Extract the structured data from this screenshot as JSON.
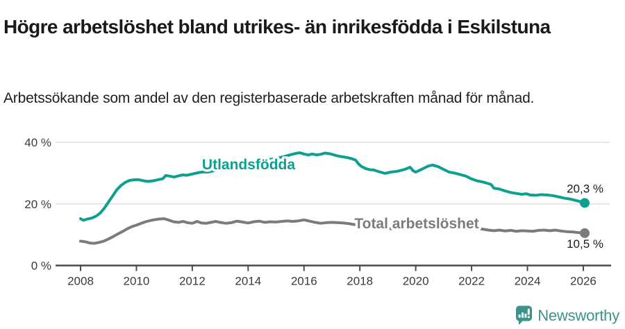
{
  "header": {
    "title": "Högre arbetslöshet bland utrikes- än inrikesfödda i Eskilstuna",
    "subtitle": "Arbetssökande som andel av den registerbaserade arbetskraften månad för månad."
  },
  "footer": {
    "brand": "Newsworthy",
    "brand_color": "#3a948b",
    "logo_icon": "newsworthy-speech-bubble-bar-chart-icon"
  },
  "chart_data": {
    "type": "line",
    "title": "Högre arbetslöshet bland utrikes- än inrikesfödda i Eskilstuna",
    "subtitle": "Arbetssökande som andel av den registerbaserade arbetskraften månad för månad.",
    "xlabel": "",
    "ylabel": "",
    "grid": true,
    "legend_position": "inline-on-line",
    "x_axis": {
      "ticks": [
        2008,
        2010,
        2012,
        2014,
        2016,
        2018,
        2020,
        2022,
        2024,
        2026
      ],
      "range": [
        2007.3,
        2026.95
      ]
    },
    "y_axis": {
      "ticks": [
        {
          "value": 0,
          "label": "0 %"
        },
        {
          "value": 20,
          "label": "20 %"
        },
        {
          "value": 40,
          "label": "40 %"
        }
      ],
      "range": [
        0,
        40
      ]
    },
    "series": [
      {
        "name": "Utlandsfödda",
        "color": "#0d9f90",
        "end_label": "20,3 %",
        "end_value": 20.3,
        "points": [
          [
            2008.0,
            15.2
          ],
          [
            2008.1,
            14.7
          ],
          [
            2008.25,
            15.1
          ],
          [
            2008.4,
            15.4
          ],
          [
            2008.55,
            16.0
          ],
          [
            2008.7,
            17.0
          ],
          [
            2008.85,
            18.6
          ],
          [
            2009.0,
            20.6
          ],
          [
            2009.15,
            22.6
          ],
          [
            2009.3,
            24.6
          ],
          [
            2009.45,
            26.0
          ],
          [
            2009.6,
            27.0
          ],
          [
            2009.75,
            27.6
          ],
          [
            2009.9,
            27.8
          ],
          [
            2010.05,
            27.9
          ],
          [
            2010.2,
            27.6
          ],
          [
            2010.4,
            27.3
          ],
          [
            2010.6,
            27.5
          ],
          [
            2010.8,
            27.9
          ],
          [
            2010.95,
            28.2
          ],
          [
            2011.05,
            29.2
          ],
          [
            2011.2,
            29.0
          ],
          [
            2011.35,
            28.7
          ],
          [
            2011.5,
            29.1
          ],
          [
            2011.65,
            29.4
          ],
          [
            2011.8,
            29.3
          ],
          [
            2011.95,
            29.6
          ],
          [
            2012.1,
            29.9
          ],
          [
            2012.25,
            30.2
          ],
          [
            2012.4,
            30.4
          ],
          [
            2012.55,
            30.3
          ],
          [
            2012.7,
            30.6
          ],
          [
            2012.85,
            30.9
          ],
          [
            2013.0,
            31.2
          ],
          [
            2013.25,
            31.6
          ],
          [
            2013.5,
            32.1
          ],
          [
            2013.75,
            32.6
          ],
          [
            2014.0,
            33.0
          ],
          [
            2014.25,
            33.5
          ],
          [
            2014.5,
            33.9
          ],
          [
            2014.75,
            34.4
          ],
          [
            2015.0,
            34.8
          ],
          [
            2015.25,
            35.3
          ],
          [
            2015.5,
            35.9
          ],
          [
            2015.7,
            36.4
          ],
          [
            2015.85,
            36.6
          ],
          [
            2016.0,
            36.2
          ],
          [
            2016.15,
            35.9
          ],
          [
            2016.3,
            36.2
          ],
          [
            2016.45,
            35.9
          ],
          [
            2016.6,
            36.1
          ],
          [
            2016.75,
            36.5
          ],
          [
            2016.9,
            36.3
          ],
          [
            2017.0,
            36.1
          ],
          [
            2017.15,
            35.7
          ],
          [
            2017.3,
            35.4
          ],
          [
            2017.5,
            35.1
          ],
          [
            2017.7,
            34.7
          ],
          [
            2017.85,
            34.2
          ],
          [
            2017.95,
            33.0
          ],
          [
            2018.05,
            32.2
          ],
          [
            2018.2,
            31.5
          ],
          [
            2018.35,
            31.1
          ],
          [
            2018.5,
            31.0
          ],
          [
            2018.7,
            30.4
          ],
          [
            2018.9,
            29.9
          ],
          [
            2019.1,
            30.3
          ],
          [
            2019.35,
            30.6
          ],
          [
            2019.6,
            31.2
          ],
          [
            2019.8,
            31.9
          ],
          [
            2019.9,
            30.8
          ],
          [
            2020.0,
            30.3
          ],
          [
            2020.25,
            31.4
          ],
          [
            2020.45,
            32.3
          ],
          [
            2020.6,
            32.6
          ],
          [
            2020.8,
            32.1
          ],
          [
            2021.0,
            31.2
          ],
          [
            2021.2,
            30.3
          ],
          [
            2021.4,
            30.0
          ],
          [
            2021.6,
            29.5
          ],
          [
            2021.8,
            29.0
          ],
          [
            2022.0,
            28.1
          ],
          [
            2022.2,
            27.5
          ],
          [
            2022.4,
            27.1
          ],
          [
            2022.6,
            26.6
          ],
          [
            2022.7,
            26.3
          ],
          [
            2022.8,
            25.1
          ],
          [
            2023.0,
            24.8
          ],
          [
            2023.2,
            24.2
          ],
          [
            2023.4,
            23.7
          ],
          [
            2023.6,
            23.4
          ],
          [
            2023.8,
            23.1
          ],
          [
            2023.95,
            23.3
          ],
          [
            2024.1,
            22.9
          ],
          [
            2024.3,
            22.8
          ],
          [
            2024.5,
            23.0
          ],
          [
            2024.7,
            22.9
          ],
          [
            2024.9,
            22.7
          ],
          [
            2025.1,
            22.3
          ],
          [
            2025.3,
            21.9
          ],
          [
            2025.5,
            21.6
          ],
          [
            2025.7,
            21.2
          ],
          [
            2025.9,
            20.7
          ],
          [
            2026.05,
            20.3
          ]
        ]
      },
      {
        "name": "Total arbetslöshet",
        "color": "#7b7b7b",
        "end_label": "10,5 %",
        "end_value": 10.5,
        "points": [
          [
            2008.0,
            7.9
          ],
          [
            2008.17,
            7.7
          ],
          [
            2008.33,
            7.3
          ],
          [
            2008.5,
            7.2
          ],
          [
            2008.67,
            7.5
          ],
          [
            2008.83,
            7.9
          ],
          [
            2009.0,
            8.6
          ],
          [
            2009.17,
            9.4
          ],
          [
            2009.33,
            10.2
          ],
          [
            2009.5,
            11.0
          ],
          [
            2009.67,
            11.9
          ],
          [
            2009.83,
            12.6
          ],
          [
            2010.0,
            13.1
          ],
          [
            2010.17,
            13.7
          ],
          [
            2010.33,
            14.2
          ],
          [
            2010.5,
            14.6
          ],
          [
            2010.67,
            14.9
          ],
          [
            2010.83,
            15.1
          ],
          [
            2011.0,
            15.2
          ],
          [
            2011.17,
            14.7
          ],
          [
            2011.33,
            14.2
          ],
          [
            2011.5,
            14.0
          ],
          [
            2011.67,
            14.3
          ],
          [
            2011.83,
            13.9
          ],
          [
            2012.0,
            13.7
          ],
          [
            2012.17,
            14.3
          ],
          [
            2012.33,
            13.8
          ],
          [
            2012.5,
            13.7
          ],
          [
            2012.67,
            14.0
          ],
          [
            2012.83,
            14.3
          ],
          [
            2013.0,
            14.0
          ],
          [
            2013.2,
            13.7
          ],
          [
            2013.4,
            13.9
          ],
          [
            2013.6,
            14.4
          ],
          [
            2013.8,
            14.1
          ],
          [
            2014.0,
            13.8
          ],
          [
            2014.2,
            14.2
          ],
          [
            2014.4,
            14.4
          ],
          [
            2014.6,
            14.0
          ],
          [
            2014.8,
            14.2
          ],
          [
            2015.0,
            14.1
          ],
          [
            2015.2,
            14.3
          ],
          [
            2015.4,
            14.5
          ],
          [
            2015.6,
            14.3
          ],
          [
            2015.8,
            14.5
          ],
          [
            2016.0,
            14.8
          ],
          [
            2016.2,
            14.4
          ],
          [
            2016.4,
            14.0
          ],
          [
            2016.6,
            13.7
          ],
          [
            2016.8,
            13.9
          ],
          [
            2017.0,
            14.0
          ],
          [
            2017.2,
            13.9
          ],
          [
            2017.4,
            13.8
          ],
          [
            2017.6,
            13.6
          ],
          [
            2017.8,
            13.3
          ],
          [
            2018.0,
            13.0
          ],
          [
            2018.3,
            12.6
          ],
          [
            2018.6,
            12.3
          ],
          [
            2018.9,
            12.1
          ],
          [
            2019.2,
            11.9
          ],
          [
            2019.5,
            11.8
          ],
          [
            2019.8,
            12.1
          ],
          [
            2020.0,
            12.4
          ],
          [
            2020.3,
            13.1
          ],
          [
            2020.5,
            13.3
          ],
          [
            2020.8,
            13.0
          ],
          [
            2021.0,
            12.8
          ],
          [
            2021.3,
            12.5
          ],
          [
            2021.6,
            12.3
          ],
          [
            2021.9,
            12.1
          ],
          [
            2022.1,
            12.0
          ],
          [
            2022.4,
            11.8
          ],
          [
            2022.6,
            11.5
          ],
          [
            2022.8,
            11.3
          ],
          [
            2023.0,
            11.5
          ],
          [
            2023.2,
            11.2
          ],
          [
            2023.4,
            11.4
          ],
          [
            2023.6,
            11.1
          ],
          [
            2023.8,
            11.3
          ],
          [
            2024.0,
            11.2
          ],
          [
            2024.2,
            11.1
          ],
          [
            2024.4,
            11.4
          ],
          [
            2024.6,
            11.5
          ],
          [
            2024.8,
            11.3
          ],
          [
            2025.0,
            11.5
          ],
          [
            2025.2,
            11.2
          ],
          [
            2025.4,
            11.0
          ],
          [
            2025.6,
            10.9
          ],
          [
            2025.8,
            10.7
          ],
          [
            2026.05,
            10.5
          ]
        ]
      }
    ]
  }
}
